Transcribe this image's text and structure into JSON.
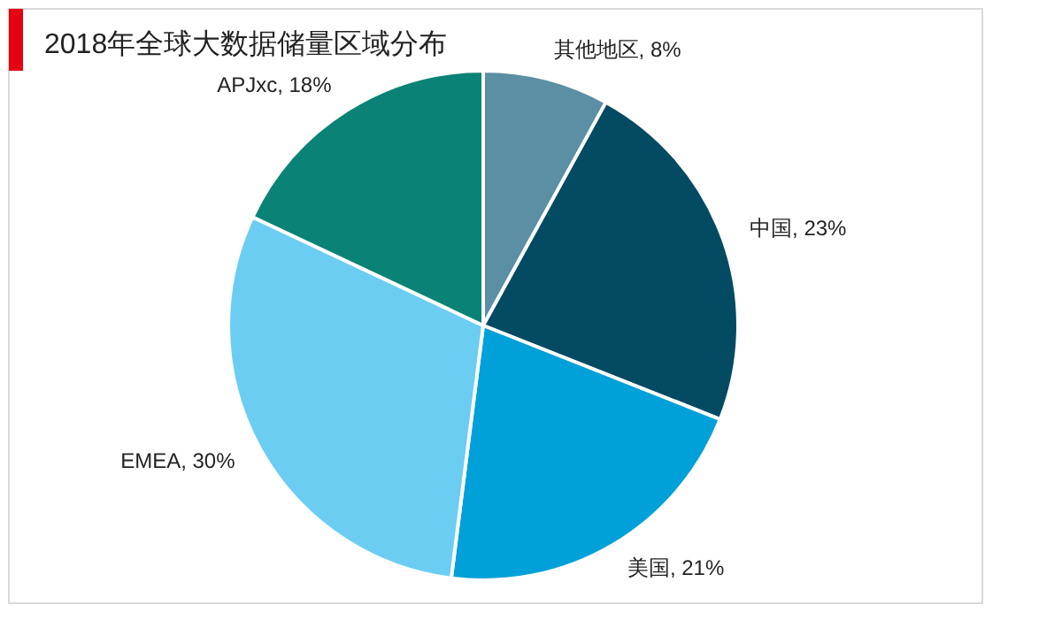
{
  "chart_data": {
    "type": "pie",
    "title": "2018年全球大数据储量区域分布",
    "categories": [
      "其他地区",
      "中国",
      "美国",
      "EMEA",
      "APJxc"
    ],
    "values": [
      8,
      23,
      21,
      30,
      18
    ],
    "value_labels": [
      "8%",
      "23%",
      "21%",
      "30%",
      "18%"
    ],
    "colors": [
      "#5b8fa3",
      "#034a63",
      "#00a0d8",
      "#6ccdf3",
      "#0b8276"
    ],
    "legend": false
  }
}
